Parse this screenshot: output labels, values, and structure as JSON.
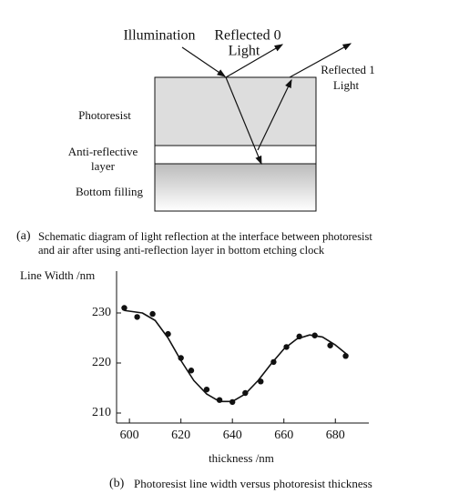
{
  "diagram": {
    "labels": {
      "illumination": "Illumination",
      "reflected0": "Reflected 0",
      "reflected0_light": "Light",
      "reflected1": "Reflected 1",
      "reflected1_light": "Light",
      "photoresist": "Photoresist",
      "anti_reflective": "Anti-reflective",
      "anti_reflective_2": "layer",
      "bottom_filling": "Bottom filling"
    },
    "caption_tag": "(a)",
    "caption_lines": [
      "Schematic diagram of light reflection at the interface between photoresist",
      "and air after using anti-reflection layer in bottom etching clock"
    ]
  },
  "chart_data": {
    "type": "scatter",
    "y_label": "Line Width /nm",
    "x_label": "thickness /nm",
    "caption_tag": "(b)",
    "caption": "Photoresist line width versus photoresist thickness",
    "x": [
      598,
      603,
      609,
      615,
      620,
      624,
      630,
      635,
      640,
      645,
      651,
      656,
      661,
      666,
      672,
      678,
      684
    ],
    "values": [
      231,
      229.2,
      229.8,
      225.8,
      221,
      218.5,
      214.7,
      212.6,
      212.2,
      214,
      216.3,
      220.2,
      223.2,
      225.3,
      225.5,
      223.5,
      221.4
    ],
    "fit_x": [
      598,
      605,
      610,
      615,
      620,
      625,
      630,
      635,
      640,
      645,
      650,
      655,
      660,
      665,
      670,
      675,
      680,
      685
    ],
    "fit_values": [
      230.5,
      230,
      228.5,
      225,
      220.5,
      216.5,
      213.8,
      212.3,
      212.3,
      213.8,
      216.5,
      219.8,
      222.8,
      224.8,
      225.6,
      225.2,
      223.6,
      221.5
    ],
    "color": "#111111",
    "xlim": [
      595,
      693
    ],
    "ylim": [
      208,
      238
    ],
    "xticks": [
      600,
      620,
      640,
      660,
      680
    ],
    "yticks": [
      210,
      220,
      230
    ]
  }
}
